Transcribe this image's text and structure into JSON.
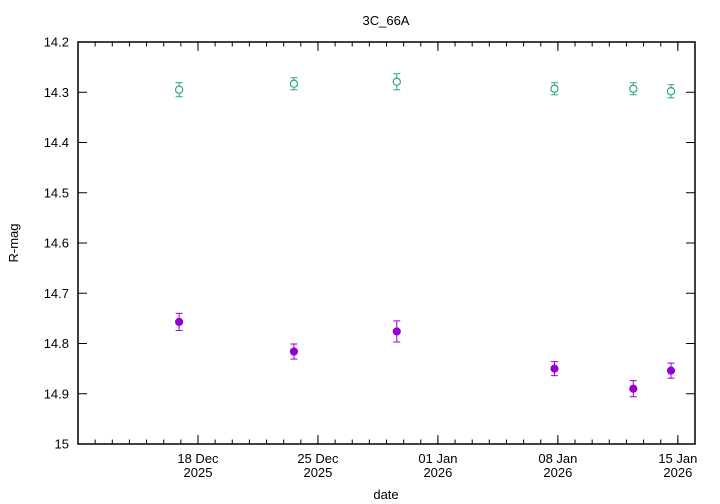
{
  "chart_data": {
    "type": "scatter",
    "title": "3C_66A",
    "xlabel": "date",
    "ylabel": "R-mag",
    "y_axis": {
      "inverted": true,
      "ylim": [
        14.2,
        15.0
      ],
      "ticks": [
        {
          "value": 14.2,
          "label": "14.2"
        },
        {
          "value": 14.3,
          "label": "14.3"
        },
        {
          "value": 14.4,
          "label": "14.4"
        },
        {
          "value": 14.5,
          "label": "14.5"
        },
        {
          "value": 14.6,
          "label": "14.6"
        },
        {
          "value": 14.7,
          "label": "14.7"
        },
        {
          "value": 14.8,
          "label": "14.8"
        },
        {
          "value": 14.9,
          "label": "14.9"
        },
        {
          "value": 15.0,
          "label": "15"
        }
      ]
    },
    "x_axis": {
      "xlim": [
        "2025-12-11",
        "2026-01-16"
      ],
      "major_ticks": [
        {
          "date": "2025-12-18",
          "label": "18 Dec",
          "label2": "2025"
        },
        {
          "date": "2025-12-25",
          "label": "25 Dec",
          "label2": "2025"
        },
        {
          "date": "2026-01-01",
          "label": "01 Jan",
          "label2": "2026"
        },
        {
          "date": "2026-01-08",
          "label": "08 Jan",
          "label2": "2026"
        },
        {
          "date": "2026-01-15",
          "label": "15 Jan",
          "label2": "2026"
        }
      ],
      "minor_tick_step_days": 1
    },
    "grid": false,
    "legend": "none",
    "series": [
      {
        "marker": "filled-circle",
        "color": "#9400d3",
        "points": [
          {
            "x": "2025-12-16.9",
            "y": 14.757,
            "err": 0.017
          },
          {
            "x": "2025-12-23.6",
            "y": 14.816,
            "err": 0.015
          },
          {
            "x": "2025-12-29.6",
            "y": 14.776,
            "err": 0.021
          },
          {
            "x": "2026-01-07.8",
            "y": 14.85,
            "err": 0.014
          },
          {
            "x": "2026-01-12.4",
            "y": 14.89,
            "err": 0.016
          },
          {
            "x": "2026-01-14.6",
            "y": 14.854,
            "err": 0.015
          }
        ]
      },
      {
        "marker": "open-circle",
        "color": "#2aa87a",
        "points": [
          {
            "x": "2025-12-16.9",
            "y": 14.295,
            "err": 0.014
          },
          {
            "x": "2025-12-23.6",
            "y": 14.283,
            "err": 0.012
          },
          {
            "x": "2025-12-29.6",
            "y": 14.279,
            "err": 0.016
          },
          {
            "x": "2026-01-07.8",
            "y": 14.293,
            "err": 0.012
          },
          {
            "x": "2026-01-12.4",
            "y": 14.293,
            "err": 0.012
          },
          {
            "x": "2026-01-14.6",
            "y": 14.298,
            "err": 0.013
          }
        ]
      }
    ]
  }
}
